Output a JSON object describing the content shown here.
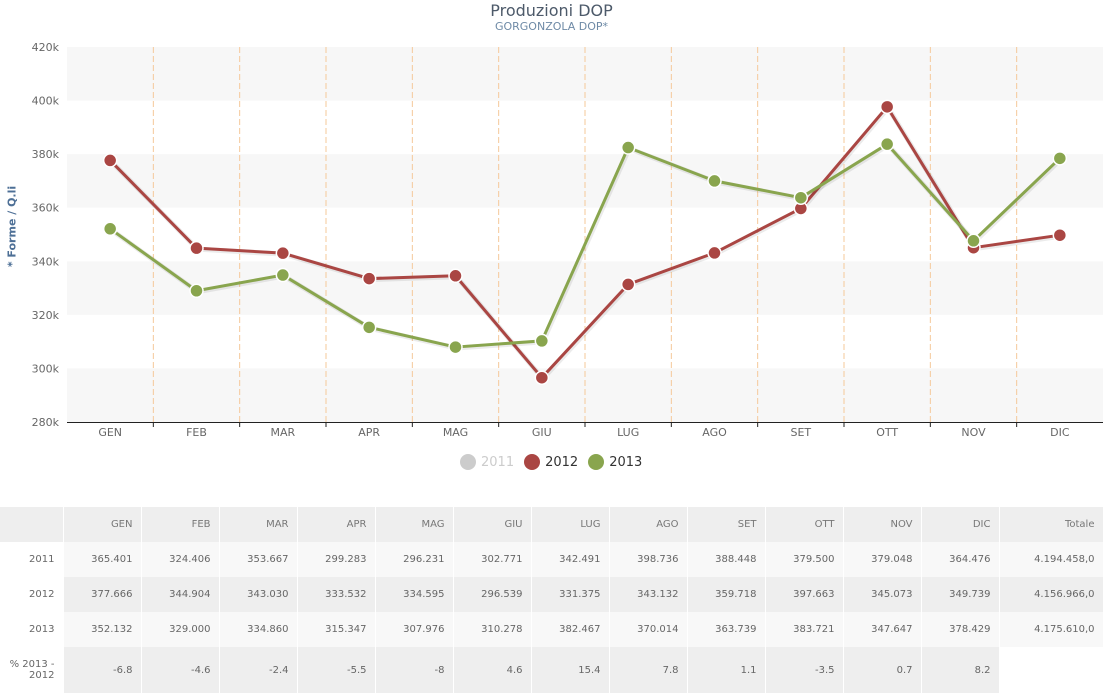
{
  "chart_data": {
    "type": "line",
    "title": "Produzioni DOP",
    "subtitle": "GORGONZOLA DOP*",
    "ylabel": "* Forme / Q.li",
    "xlabel": "",
    "ylim": [
      280000,
      420000
    ],
    "yticks": [
      280000,
      300000,
      320000,
      340000,
      360000,
      380000,
      400000,
      420000
    ],
    "ytick_labels": [
      "280k",
      "300k",
      "320k",
      "340k",
      "360k",
      "380k",
      "400k",
      "420k"
    ],
    "categories": [
      "GEN",
      "FEB",
      "MAR",
      "APR",
      "MAG",
      "GIU",
      "LUG",
      "AGO",
      "SET",
      "OTT",
      "NOV",
      "DIC"
    ],
    "legend_position": "bottom",
    "series": [
      {
        "name": "2011",
        "color": "#cccccc",
        "visible": false,
        "values": [
          365401,
          324406,
          353667,
          299283,
          296231,
          302771,
          342491,
          398736,
          388448,
          379500,
          379048,
          364476
        ]
      },
      {
        "name": "2012",
        "color": "#aa4643",
        "visible": true,
        "values": [
          377666,
          344904,
          343030,
          333532,
          334595,
          296539,
          331375,
          343132,
          359718,
          397663,
          345073,
          349739
        ]
      },
      {
        "name": "2013",
        "color": "#89a54e",
        "visible": true,
        "values": [
          352132,
          329000,
          334860,
          315347,
          307976,
          310278,
          382467,
          370014,
          363739,
          383721,
          347647,
          378429
        ]
      }
    ]
  },
  "table": {
    "headers": [
      "",
      "GEN",
      "FEB",
      "MAR",
      "APR",
      "MAG",
      "GIU",
      "LUG",
      "AGO",
      "SET",
      "OTT",
      "NOV",
      "DIC",
      "Totale"
    ],
    "rows": [
      [
        "2011",
        "365.401",
        "324.406",
        "353.667",
        "299.283",
        "296.231",
        "302.771",
        "342.491",
        "398.736",
        "388.448",
        "379.500",
        "379.048",
        "364.476",
        "4.194.458,0"
      ],
      [
        "2012",
        "377.666",
        "344.904",
        "343.030",
        "333.532",
        "334.595",
        "296.539",
        "331.375",
        "343.132",
        "359.718",
        "397.663",
        "345.073",
        "349.739",
        "4.156.966,0"
      ],
      [
        "2013",
        "352.132",
        "329.000",
        "334.860",
        "315.347",
        "307.976",
        "310.278",
        "382.467",
        "370.014",
        "363.739",
        "383.721",
        "347.647",
        "378.429",
        "4.175.610,0"
      ],
      [
        "% 2013 - 2012",
        "-6.8",
        "-4.6",
        "-2.4",
        "-5.5",
        "-8",
        "4.6",
        "15.4",
        "7.8",
        "1.1",
        "-3.5",
        "0.7",
        "8.2",
        ""
      ]
    ]
  }
}
